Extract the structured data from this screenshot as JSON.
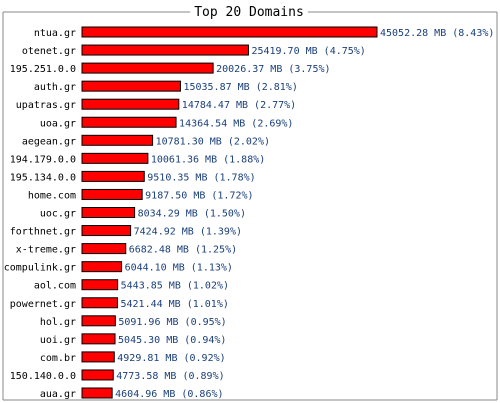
{
  "chart_data": {
    "type": "bar",
    "orientation": "horizontal",
    "title": "Top 20 Domains",
    "categories": [
      "ntua.gr",
      "otenet.gr",
      "195.251.0.0",
      "auth.gr",
      "upatras.gr",
      "uoa.gr",
      "aegean.gr",
      "194.179.0.0",
      "195.134.0.0",
      "home.com",
      "uoc.gr",
      "forthnet.gr",
      "x-treme.gr",
      "compulink.gr",
      "aol.com",
      "powernet.gr",
      "hol.gr",
      "uoi.gr",
      "com.br",
      "150.140.0.0",
      "aua.gr"
    ],
    "values": [
      45052.28,
      25419.7,
      20026.37,
      15035.87,
      14784.47,
      14364.54,
      10781.3,
      10061.36,
      9510.35,
      9187.5,
      8034.29,
      7424.92,
      6682.48,
      6044.1,
      5443.85,
      5421.44,
      5091.96,
      5045.3,
      4929.81,
      4773.58,
      4604.96
    ],
    "value_labels": [
      "45052.28 MB (8.43%)",
      "25419.70 MB (4.75%)",
      "20026.37 MB (3.75%)",
      "15035.87 MB (2.81%)",
      "14784.47 MB (2.77%)",
      "14364.54 MB (2.69%)",
      "10781.30 MB (2.02%)",
      "10061.36 MB (1.88%)",
      "9510.35 MB (1.78%)",
      "9187.50 MB (1.72%)",
      "8034.29 MB (1.50%)",
      "7424.92 MB (1.39%)",
      "6682.48 MB (1.25%)",
      "6044.10 MB (1.13%)",
      "5443.85 MB (1.02%)",
      "5421.44 MB (1.01%)",
      "5091.96 MB (0.95%)",
      "5045.30 MB (0.94%)",
      "4929.81 MB (0.92%)",
      "4773.58 MB (0.89%)",
      "4604.96 MB (0.86%)"
    ],
    "colors": {
      "bar": "#ff0000",
      "bar_border": "#000000",
      "value_text": "#1a3f7a",
      "frame": "#888888"
    }
  }
}
